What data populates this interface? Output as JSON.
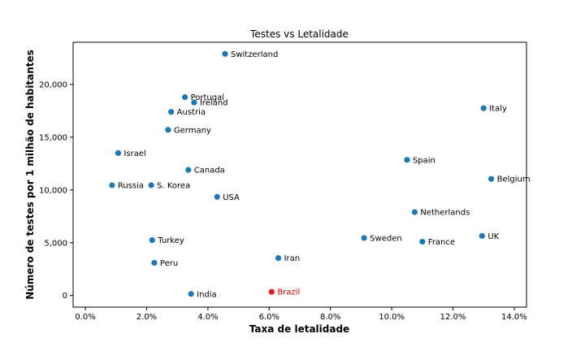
{
  "chart_data": {
    "type": "scatter",
    "title": "Testes vs Letalidade",
    "xlabel": "Taxa de letalidade",
    "ylabel": "Número de testes por 1 milhão de habitantes",
    "xlim": [
      -0.4,
      14.4
    ],
    "ylim": [
      -1100,
      24000
    ],
    "x_ticks": [
      0,
      2,
      4,
      6,
      8,
      10,
      12,
      14
    ],
    "x_tick_labels": [
      "0.0%",
      "2.0%",
      "4.0%",
      "6.0%",
      "8.0%",
      "10.0%",
      "12.0%",
      "14.0%"
    ],
    "y_ticks": [
      0,
      5000,
      10000,
      15000,
      20000
    ],
    "y_tick_labels": [
      "0",
      "5,000",
      "10,000",
      "15,000",
      "20,000"
    ],
    "grid": false,
    "colors": {
      "default": "#1f77b4",
      "highlight": "#e41a1c",
      "highlight_label": "#cc0000"
    },
    "points": [
      {
        "label": "Switzerland",
        "x": 4.56,
        "y": 22900
      },
      {
        "label": "Portugal",
        "x": 3.25,
        "y": 18800
      },
      {
        "label": "Ireland",
        "x": 3.55,
        "y": 18300
      },
      {
        "label": "Austria",
        "x": 2.8,
        "y": 17400
      },
      {
        "label": "Italy",
        "x": 13.0,
        "y": 17750
      },
      {
        "label": "Germany",
        "x": 2.7,
        "y": 15700
      },
      {
        "label": "Israel",
        "x": 1.07,
        "y": 13500
      },
      {
        "label": "Spain",
        "x": 10.5,
        "y": 12850
      },
      {
        "label": "Canada",
        "x": 3.36,
        "y": 11900
      },
      {
        "label": "Belgium",
        "x": 13.25,
        "y": 11050
      },
      {
        "label": "Russia",
        "x": 0.87,
        "y": 10450
      },
      {
        "label": "S. Korea",
        "x": 2.15,
        "y": 10450
      },
      {
        "label": "USA",
        "x": 4.3,
        "y": 9350
      },
      {
        "label": "Netherlands",
        "x": 10.75,
        "y": 7900
      },
      {
        "label": "Sweden",
        "x": 9.1,
        "y": 5450
      },
      {
        "label": "UK",
        "x": 12.95,
        "y": 5650
      },
      {
        "label": "France",
        "x": 11.0,
        "y": 5100
      },
      {
        "label": "Turkey",
        "x": 2.18,
        "y": 5250
      },
      {
        "label": "Iran",
        "x": 6.3,
        "y": 3550
      },
      {
        "label": "Peru",
        "x": 2.25,
        "y": 3100
      },
      {
        "label": "India",
        "x": 3.45,
        "y": 150
      },
      {
        "label": "Brazil",
        "x": 6.08,
        "y": 350,
        "highlight": true
      }
    ]
  }
}
